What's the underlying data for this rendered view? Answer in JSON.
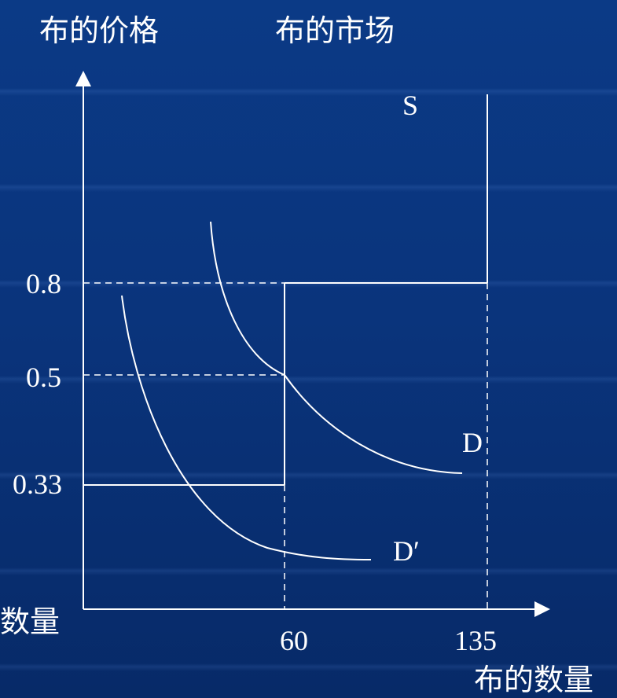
{
  "header": {
    "y_axis_title": "布的价格",
    "chart_title": "布的市场"
  },
  "labels": {
    "supply": "S",
    "demand": "D",
    "demand_shifted": "D′",
    "x_axis_title": "布的数量",
    "partial_left_text": "数量"
  },
  "y_ticks": [
    "0.8",
    "0.5",
    "0.33"
  ],
  "x_ticks": [
    "60",
    "135"
  ],
  "colors": {
    "background": "#0a347c",
    "foreground": "#ffffff"
  },
  "chart_data": {
    "type": "line",
    "x_ticks": [
      60,
      135
    ],
    "y_ticks": [
      0.8,
      0.5,
      0.33
    ],
    "series": [
      {
        "name": "S",
        "kind": "vertical",
        "x": 135
      },
      {
        "name": "D",
        "kind": "curve",
        "points": [
          [
            60,
            0.5
          ]
        ]
      },
      {
        "name": "D′",
        "kind": "curve",
        "points": []
      }
    ]
  }
}
